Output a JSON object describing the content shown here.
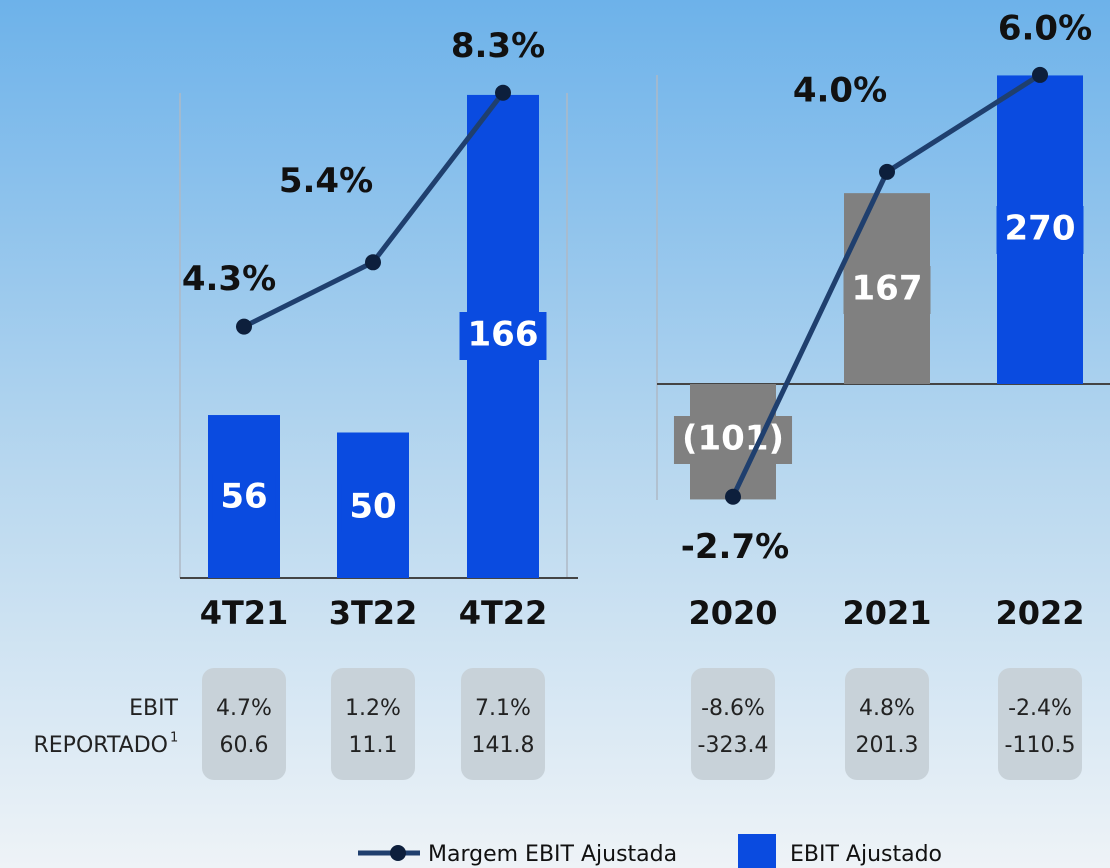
{
  "chart_data": [
    {
      "type": "bar_line",
      "categories": [
        "4T21",
        "3T22",
        "4T22"
      ],
      "ylim": [
        0,
        178
      ],
      "y2lim": [
        0,
        8.86
      ],
      "series": [
        {
          "name": "EBIT Ajustado",
          "color": "#0a4be0",
          "colors": [
            "#0a4be0",
            "#0a4be0",
            "#0a4be0"
          ],
          "values": [
            56,
            50,
            166
          ]
        },
        {
          "name": "Margem EBIT Ajustada",
          "color": "#1f3f6e",
          "axis": "y2",
          "values": [
            4.3,
            5.4,
            8.3
          ],
          "value_labels": [
            "4.3%",
            "5.4%",
            "8.3%"
          ]
        }
      ],
      "reported": {
        "title": [
          "EBIT",
          "REPORTADO"
        ],
        "title_note": "1",
        "margin": {
          "values": [
            4.7,
            1.2,
            7.1
          ],
          "value_labels": [
            "4.7%",
            "1.2%",
            "7.1%"
          ]
        },
        "ebit": [
          60.6,
          11.1,
          141.8
        ]
      }
    },
    {
      "type": "bar_line",
      "categories": [
        "2020",
        "2021",
        "2022"
      ],
      "ylim": [
        -119,
        301
      ],
      "y2lim": [
        -3.18,
        6.72
      ],
      "series": [
        {
          "color": "#0a4be0",
          "colors": [
            "#808080",
            "#808080",
            "#0a4be0"
          ],
          "values": [
            -101,
            167,
            270
          ],
          "value_labels": [
            "(101)",
            "167",
            "270"
          ]
        },
        {
          "color": "#1f3f6e",
          "axis": "y2",
          "values": [
            -2.7,
            4.0,
            6.0
          ],
          "value_labels": [
            "-2.7%",
            "4.0%",
            "6.0%"
          ]
        }
      ],
      "reported": {
        "margin": {
          "values": [
            -8.6,
            4.8,
            -2.4
          ],
          "value_labels": [
            "-8.6%",
            "4.8%",
            "-2.4%"
          ]
        },
        "ebit": [
          -323.4,
          201.3,
          -110.5
        ]
      }
    }
  ]
}
